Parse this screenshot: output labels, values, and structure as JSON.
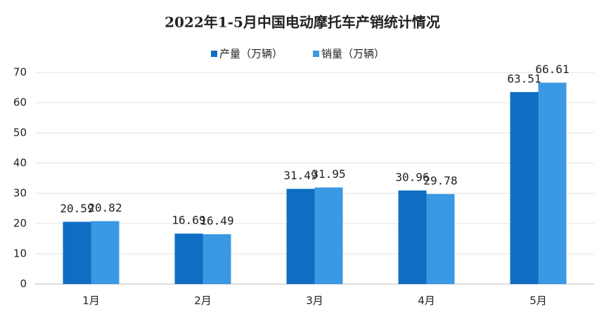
{
  "chart_data": {
    "type": "bar",
    "title": "2022年1-5月中国电动摩托车产销统计情况",
    "categories": [
      "1月",
      "2月",
      "3月",
      "4月",
      "5月"
    ],
    "series": [
      {
        "name": "产量（万辆）",
        "color": "#0f6ec4",
        "values": [
          20.59,
          16.69,
          31.49,
          30.96,
          63.51
        ]
      },
      {
        "name": "销量（万辆）",
        "color": "#3b98e3",
        "values": [
          20.82,
          16.49,
          31.95,
          29.78,
          66.61
        ]
      }
    ],
    "ylim": [
      0,
      70
    ],
    "yticks": [
      0,
      10,
      20,
      30,
      40,
      50,
      60,
      70
    ],
    "grid": true,
    "legend": "top"
  }
}
